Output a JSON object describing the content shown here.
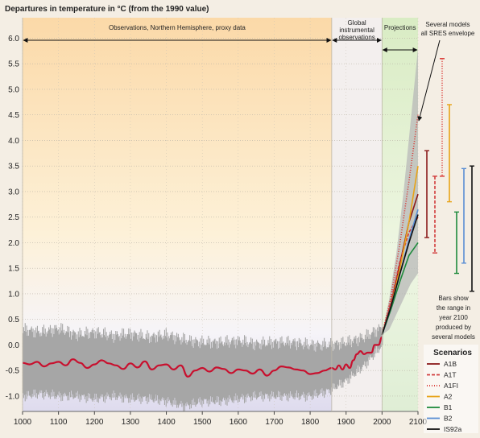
{
  "chart_data": {
    "type": "line",
    "title": "Departures in temperature in °C (from the 1990 value)",
    "xlim": [
      1000,
      2100
    ],
    "ylim": [
      -1.3,
      6.4
    ],
    "x_ticks": [
      "1000",
      "1100",
      "1200",
      "1300",
      "1400",
      "1500",
      "1600",
      "1700",
      "1800",
      "1900",
      "2000",
      "2100"
    ],
    "y_ticks": [
      "-1.0",
      "-0.5",
      "0.0",
      "0.5",
      "1.0",
      "1.5",
      "2.0",
      "2.5",
      "3.0",
      "3.5",
      "4.0",
      "4.5",
      "5.0",
      "5.5",
      "6.0"
    ],
    "grid": true,
    "periods": [
      {
        "label": "Observations, Northern Hemisphere, proxy data",
        "start": 1000,
        "end": 1860
      },
      {
        "label_lines": [
          "Global",
          "instrumental",
          "observations"
        ],
        "start": 1860,
        "end": 2000
      },
      {
        "label": "Projections",
        "start": 2000,
        "end": 2100
      }
    ],
    "annotations": {
      "envelope_note": [
        "Several models",
        "all SRES envelope"
      ],
      "bars_note": [
        "Bars show",
        "the range in",
        "year 2100",
        "produced by",
        "several models"
      ]
    },
    "observed_series": {
      "name": "",
      "color": "#c8102e",
      "x": [
        1000,
        1020,
        1040,
        1060,
        1080,
        1100,
        1120,
        1140,
        1160,
        1180,
        1200,
        1220,
        1240,
        1260,
        1280,
        1300,
        1320,
        1340,
        1360,
        1380,
        1400,
        1420,
        1440,
        1460,
        1480,
        1500,
        1520,
        1540,
        1560,
        1580,
        1600,
        1620,
        1640,
        1660,
        1680,
        1700,
        1720,
        1740,
        1760,
        1780,
        1800,
        1820,
        1840,
        1860,
        1870,
        1880,
        1890,
        1900,
        1910,
        1920,
        1930,
        1940,
        1950,
        1960,
        1970,
        1980,
        1990,
        2000
      ],
      "values": [
        -0.35,
        -0.38,
        -0.33,
        -0.42,
        -0.36,
        -0.33,
        -0.4,
        -0.28,
        -0.35,
        -0.45,
        -0.38,
        -0.3,
        -0.36,
        -0.4,
        -0.47,
        -0.36,
        -0.44,
        -0.32,
        -0.48,
        -0.4,
        -0.38,
        -0.48,
        -0.4,
        -0.62,
        -0.5,
        -0.45,
        -0.52,
        -0.44,
        -0.47,
        -0.55,
        -0.48,
        -0.5,
        -0.56,
        -0.48,
        -0.6,
        -0.5,
        -0.42,
        -0.44,
        -0.48,
        -0.5,
        -0.57,
        -0.55,
        -0.5,
        -0.45,
        -0.48,
        -0.4,
        -0.48,
        -0.38,
        -0.45,
        -0.3,
        -0.18,
        -0.12,
        -0.18,
        -0.15,
        -0.15,
        0.0,
        0.0,
        0.15
      ]
    },
    "proxy_range": {
      "name": "",
      "color": "#9a9a9a",
      "x": [
        1000,
        1050,
        1100,
        1150,
        1200,
        1250,
        1300,
        1350,
        1400,
        1450,
        1500,
        1550,
        1600,
        1650,
        1700,
        1750,
        1800,
        1850,
        1900,
        1950,
        2000
      ],
      "upper": [
        0.3,
        0.25,
        0.32,
        0.2,
        0.25,
        0.18,
        0.22,
        0.15,
        0.2,
        0.1,
        0.05,
        0.05,
        0.08,
        0.02,
        0.05,
        0.05,
        0.0,
        0.0,
        0.05,
        0.15,
        0.35
      ],
      "lower": [
        -1.0,
        -0.95,
        -1.0,
        -1.0,
        -1.05,
        -1.0,
        -1.05,
        -1.05,
        -1.1,
        -1.2,
        -1.1,
        -1.1,
        -1.05,
        -1.0,
        -1.0,
        -1.0,
        -1.0,
        -0.9,
        -0.7,
        -0.4,
        0.0
      ]
    },
    "envelope": {
      "x": [
        2000,
        2020,
        2040,
        2060,
        2080,
        2100
      ],
      "upper": [
        0.2,
        0.9,
        1.8,
        3.0,
        4.4,
        5.8
      ],
      "lower": [
        0.2,
        0.3,
        0.6,
        0.9,
        1.2,
        1.4
      ]
    },
    "series": [
      {
        "name": "A1B",
        "color": "#8b1a1a",
        "dash": "",
        "x": [
          2000,
          2025,
          2050,
          2075,
          2100
        ],
        "values": [
          0.2,
          0.8,
          1.6,
          2.4,
          2.95
        ]
      },
      {
        "name": "A1T",
        "color": "#d13b3b",
        "dash": "4,2",
        "x": [
          2000,
          2025,
          2050,
          2075,
          2100
        ],
        "values": [
          0.2,
          0.85,
          1.65,
          2.2,
          2.5
        ]
      },
      {
        "name": "A1FI",
        "color": "#d9302c",
        "dash": "1,2",
        "x": [
          2000,
          2025,
          2050,
          2075,
          2100
        ],
        "values": [
          0.2,
          0.95,
          2.0,
          3.2,
          4.5
        ]
      },
      {
        "name": "A2",
        "color": "#e8a317",
        "dash": "",
        "x": [
          2000,
          2025,
          2050,
          2075,
          2100
        ],
        "values": [
          0.2,
          0.75,
          1.5,
          2.4,
          3.5
        ]
      },
      {
        "name": "B1",
        "color": "#1e8a3c",
        "dash": "",
        "x": [
          2000,
          2025,
          2050,
          2075,
          2100
        ],
        "values": [
          0.2,
          0.7,
          1.25,
          1.75,
          2.0
        ]
      },
      {
        "name": "B2",
        "color": "#5a8ed4",
        "dash": "",
        "x": [
          2000,
          2025,
          2050,
          2075,
          2100
        ],
        "values": [
          0.2,
          0.75,
          1.4,
          2.05,
          2.65
        ]
      },
      {
        "name": "IS92a",
        "color": "#111111",
        "dash": "",
        "x": [
          2000,
          2025,
          2050,
          2075,
          2100
        ],
        "values": [
          0.2,
          0.75,
          1.4,
          2.0,
          2.55
        ]
      }
    ],
    "range_bars": [
      {
        "name": "A1B",
        "color": "#8b1a1a",
        "dash": "",
        "low": 2.1,
        "high": 3.8
      },
      {
        "name": "A1T",
        "color": "#d13b3b",
        "dash": "4,2",
        "low": 1.8,
        "high": 3.3
      },
      {
        "name": "A1FI",
        "color": "#d9302c",
        "dash": "1,2",
        "low": 3.3,
        "high": 5.6
      },
      {
        "name": "A2",
        "color": "#e8a317",
        "dash": "",
        "low": 2.8,
        "high": 4.7
      },
      {
        "name": "B1",
        "color": "#1e8a3c",
        "dash": "",
        "low": 1.4,
        "high": 2.6
      },
      {
        "name": "B2",
        "color": "#5a8ed4",
        "dash": "",
        "low": 1.6,
        "high": 3.45
      },
      {
        "name": "IS92a",
        "color": "#111111",
        "dash": "",
        "low": 1.05,
        "high": 3.5
      }
    ],
    "legend": {
      "title": "Scenarios",
      "placement": "bottom-right",
      "entries": [
        {
          "name": "A1B",
          "color": "#8b1a1a",
          "dash": ""
        },
        {
          "name": "A1T",
          "color": "#d13b3b",
          "dash": "4,2"
        },
        {
          "name": "A1FI",
          "color": "#d9302c",
          "dash": "1,2"
        },
        {
          "name": "A2",
          "color": "#e8a317",
          "dash": ""
        },
        {
          "name": "B1",
          "color": "#1e8a3c",
          "dash": ""
        },
        {
          "name": "B2",
          "color": "#5a8ed4",
          "dash": ""
        },
        {
          "name": "IS92a",
          "color": "#111111",
          "dash": ""
        }
      ]
    }
  }
}
